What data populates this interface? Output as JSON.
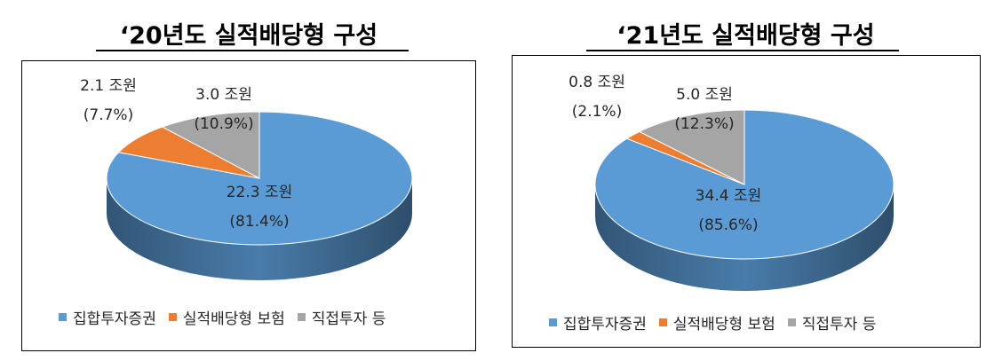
{
  "chart_data": [
    {
      "type": "pie",
      "title": "‘20년도  실적배당형  구성",
      "categories": [
        "집합투자증권",
        "실적배당형 보험",
        "직접투자 등"
      ],
      "values": [
        22.3,
        2.1,
        3.0
      ],
      "value_labels": [
        "22.3 조원",
        "2.1 조원",
        "3.0 조원"
      ],
      "percent_labels": [
        "(81.4%)",
        "(7.7%)",
        "(10.9%)"
      ],
      "colors": [
        "#5B9BD5",
        "#ED7D31",
        "#A5A5A5"
      ],
      "legend_position": "bottom"
    },
    {
      "type": "pie",
      "title": "‘21년도  실적배당형  구성",
      "categories": [
        "집합투자증권",
        "실적배당형 보험",
        "직접투자 등"
      ],
      "values": [
        34.4,
        0.8,
        5.0
      ],
      "value_labels": [
        "34.4 조원",
        "0.8 조원",
        "5.0 조원"
      ],
      "percent_labels": [
        "(85.6%)",
        "(2.1%)",
        "(12.3%)"
      ],
      "colors": [
        "#5B9BD5",
        "#ED7D31",
        "#A5A5A5"
      ],
      "legend_position": "bottom"
    }
  ]
}
